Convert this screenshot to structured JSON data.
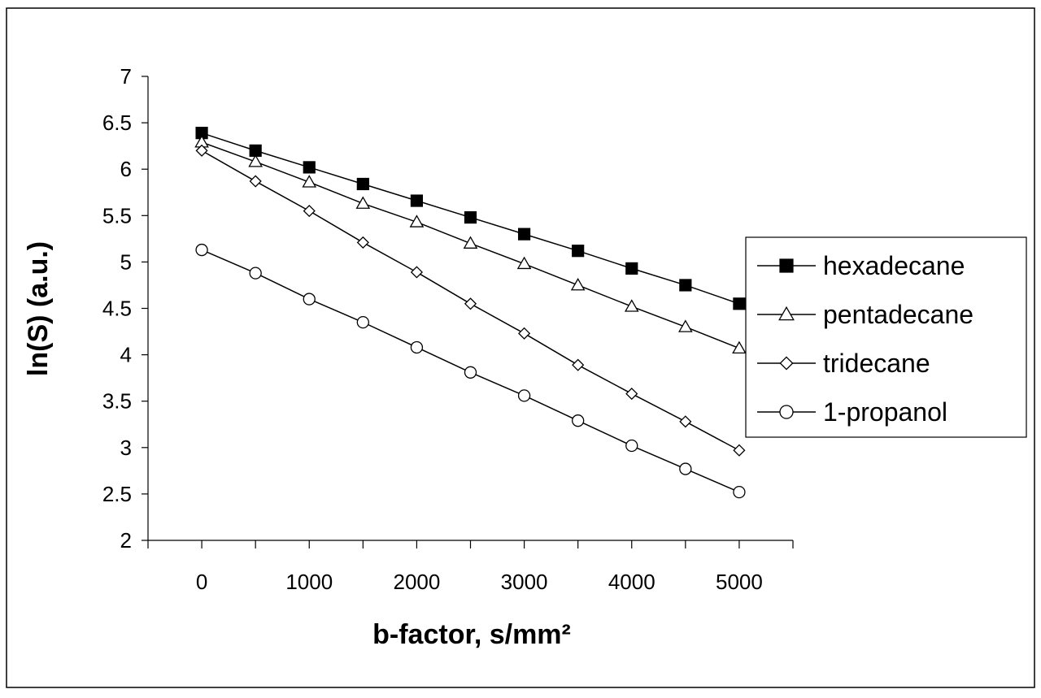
{
  "chart_data": {
    "type": "line",
    "title": "",
    "xlabel": "b-factor, s/mm²",
    "ylabel": "ln(S) (a.u.)",
    "xlim": [
      -500,
      5500
    ],
    "ylim": [
      2,
      7
    ],
    "x_ticks": [
      0,
      1000,
      2000,
      3000,
      4000,
      5000
    ],
    "y_ticks": [
      2,
      2.5,
      3,
      3.5,
      4,
      4.5,
      5,
      5.5,
      6,
      6.5,
      7
    ],
    "y_tick_labels": [
      "2",
      "2.5",
      "3",
      "3.5",
      "4",
      "4.5",
      "5",
      "5.5",
      "6",
      "6.5",
      "7"
    ],
    "grid": false,
    "legend_position": "right",
    "x": [
      0,
      500,
      1000,
      1500,
      2000,
      2500,
      3000,
      3500,
      4000,
      4500,
      5000
    ],
    "series": [
      {
        "name": "hexadecane",
        "marker": "filled-square",
        "values": [
          6.39,
          6.2,
          6.02,
          5.84,
          5.66,
          5.48,
          5.3,
          5.12,
          4.93,
          4.75,
          4.55
        ]
      },
      {
        "name": "pentadecane",
        "marker": "open-triangle",
        "values": [
          6.29,
          6.08,
          5.86,
          5.63,
          5.43,
          5.2,
          4.98,
          4.75,
          4.52,
          4.3,
          4.07
        ]
      },
      {
        "name": "tridecane",
        "marker": "open-diamond",
        "values": [
          6.2,
          5.87,
          5.55,
          5.21,
          4.89,
          4.55,
          4.23,
          3.89,
          3.58,
          3.28,
          2.97
        ]
      },
      {
        "name": "1-propanol",
        "marker": "open-circle",
        "values": [
          5.13,
          4.88,
          4.6,
          4.35,
          4.08,
          3.81,
          3.56,
          3.29,
          3.02,
          2.77,
          2.52
        ]
      }
    ]
  }
}
